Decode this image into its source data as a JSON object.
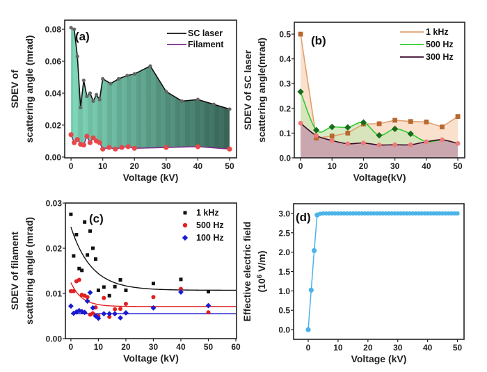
{
  "chart_data": [
    {
      "panel": "(a)",
      "type": "area",
      "xlabel": "Voltage (kV)",
      "ylabel": [
        "SDEV of",
        "scattering angle (mrad)"
      ],
      "xlim": [
        -2,
        52.2
      ],
      "ylim": [
        -0.0005,
        0.0857
      ],
      "xticks": [
        0,
        10,
        20,
        30,
        40,
        50
      ],
      "xtick_labels": [
        "0",
        "10",
        "20",
        "30",
        "40",
        "50"
      ],
      "yticks": [
        0,
        0.02,
        0.04,
        0.06,
        0.08
      ],
      "ytick_labels": [
        "0.00",
        "0.02",
        "0.04",
        "0.06",
        "0.08"
      ],
      "legend": "top-right",
      "series": [
        {
          "name": "SC laser",
          "color": "#111111",
          "marker_color": "#666666",
          "x": [
            0,
            1,
            2,
            3,
            4,
            5,
            6,
            7,
            8,
            9,
            10,
            12.5,
            15,
            17.7,
            20,
            25,
            30,
            35,
            40,
            45,
            50
          ],
          "y": [
            0.081,
            0.08,
            0.063,
            0.031,
            0.048,
            0.038,
            0.04,
            0.035,
            0.039,
            0.036,
            0.049,
            0.046,
            0.049,
            0.051,
            0.052,
            0.057,
            0.041,
            0.035,
            0.036,
            0.033,
            0.03
          ]
        },
        {
          "name": "Filament",
          "color": "#7a2a8a",
          "marker_color": "#e8474a",
          "x": [
            0,
            1,
            2,
            3,
            4,
            5,
            6,
            7,
            8,
            9,
            10,
            12,
            14,
            16,
            18,
            20,
            30,
            40,
            50
          ],
          "y": [
            0.014,
            0.009,
            0.011,
            0.008,
            0.0075,
            0.013,
            0.009,
            0.012,
            0.01,
            0.009,
            0.005,
            0.006,
            0.005,
            0.006,
            0.0065,
            0.0055,
            0.006,
            0.0065,
            0.005
          ]
        }
      ],
      "fill_color": "#6fc9ad"
    },
    {
      "panel": "(b)",
      "type": "area",
      "xlabel": "Voltage(kV)",
      "ylabel": [
        "SDEV of SC laser",
        "scattering angle(mrad)"
      ],
      "xlim": [
        -2,
        52.2
      ],
      "ylim": [
        0,
        0.548
      ],
      "xticks": [
        0,
        10,
        20,
        30,
        40,
        50
      ],
      "xtick_labels": [
        "0",
        "10",
        "20",
        "30",
        "40",
        "50"
      ],
      "yticks": [
        0,
        0.1,
        0.2,
        0.3,
        0.4,
        0.5
      ],
      "ytick_labels": [
        "0.0",
        "0.1",
        "0.2",
        "0.3",
        "0.4",
        "0.5"
      ],
      "legend": "top-right",
      "series": [
        {
          "name": "1 kHz",
          "color": "#e0a070",
          "marker_color": "#b8672e",
          "fill": "#f7d9c0",
          "marker": "square",
          "smooth": false,
          "x": [
            0,
            5,
            10,
            15,
            20,
            25,
            30,
            35,
            40,
            45,
            50
          ],
          "y": [
            0.5,
            0.08,
            0.088,
            0.1,
            0.137,
            0.138,
            0.152,
            0.147,
            0.145,
            0.125,
            0.167
          ]
        },
        {
          "name": "500 Hz",
          "color": "#2ecc2e",
          "marker_color": "#1a6b1a",
          "fill": "#cfe6b8",
          "marker": "diamond",
          "smooth": true,
          "x": [
            0,
            5,
            10,
            15,
            20,
            25,
            30,
            35,
            40,
            45,
            50
          ],
          "y": [
            0.267,
            0.112,
            0.125,
            0.123,
            0.143,
            0.091,
            0.117,
            0.097,
            0.065,
            0.072,
            0.058
          ]
        },
        {
          "name": "300 Hz",
          "color": "#3a0a2a",
          "marker_color": "#f07a7a",
          "fill": "#c9a3ad",
          "marker": "circle",
          "smooth": true,
          "x": [
            0,
            5,
            10,
            15,
            20,
            25,
            30,
            35,
            40,
            45,
            50
          ],
          "y": [
            0.14,
            0.09,
            0.07,
            0.057,
            0.06,
            0.052,
            0.053,
            0.053,
            0.065,
            0.073,
            0.058
          ]
        }
      ]
    },
    {
      "panel": "(c)",
      "type": "scatter",
      "xlabel": "Voltage (kV)",
      "ylabel": [
        "SDEV of filament",
        "scattering angle (mrad)"
      ],
      "xlim": [
        -2,
        60.25
      ],
      "ylim": [
        0,
        0.03
      ],
      "xticks": [
        0,
        10,
        20,
        30,
        40,
        50,
        60
      ],
      "xtick_labels": [
        "0",
        "10",
        "20",
        "30",
        "40",
        "50",
        "60"
      ],
      "yticks": [
        0,
        0.01,
        0.02,
        0.03
      ],
      "ytick_labels": [
        "0.00",
        "0.01",
        "0.02",
        "0.03"
      ],
      "legend": "top-right",
      "series": [
        {
          "name": "1 kHz",
          "color": "#111111",
          "marker": "square",
          "x": [
            0,
            1,
            2,
            3,
            4,
            5,
            6,
            7,
            8,
            9,
            10,
            12,
            14,
            16,
            18,
            20,
            30,
            40,
            50
          ],
          "y": [
            0.0275,
            0.0183,
            0.023,
            0.0155,
            0.0151,
            0.0258,
            0.0185,
            0.0238,
            0.02,
            0.0176,
            0.0107,
            0.0114,
            0.0095,
            0.0115,
            0.013,
            0.0107,
            0.0122,
            0.0131,
            0.0104
          ],
          "fit": {
            "y0": 0.0107,
            "A": 0.014,
            "t": 7.5
          }
        },
        {
          "name": "500 Hz",
          "color": "#e02020",
          "marker": "circle",
          "x": [
            0,
            1,
            2,
            3,
            4,
            5,
            6,
            7,
            8,
            9,
            10,
            12,
            14,
            16,
            18,
            20,
            30,
            40,
            50
          ],
          "y": [
            0.0105,
            0.0105,
            0.0127,
            0.013,
            0.0097,
            0.0095,
            0.0092,
            0.0053,
            0.0056,
            0.0069,
            0.005,
            0.009,
            0.0048,
            0.0065,
            0.0066,
            0.0077,
            0.0092,
            0.011,
            0.0058
          ],
          "fit": {
            "y0": 0.0071,
            "A": 0.0053,
            "t": 4
          }
        },
        {
          "name": "100 Hz",
          "color": "#1a1ad0",
          "marker": "diamond",
          "x": [
            0,
            1,
            2,
            3,
            4,
            5,
            6,
            7,
            8,
            9,
            10,
            12,
            14,
            16,
            18,
            20,
            30,
            40,
            50
          ],
          "y": [
            0.0072,
            0.0056,
            0.0059,
            0.0062,
            0.006,
            0.0058,
            0.0083,
            0.0102,
            0.0068,
            0.005,
            0.0045,
            0.0055,
            0.0055,
            0.0055,
            0.0046,
            0.0057,
            0.0068,
            0.0103,
            0.0073
          ],
          "fit": {
            "y0": 0.0055,
            "A": 0,
            "t": 1
          }
        }
      ]
    },
    {
      "panel": "(d)",
      "type": "line",
      "xlabel": "Voltage (kV)",
      "ylabel": [
        "Effective electric field",
        "(10",
        "6",
        " V/m)"
      ],
      "xlim": [
        -4.9,
        52.2
      ],
      "ylim": [
        -0.25,
        3.25
      ],
      "xticks": [
        0,
        10,
        20,
        30,
        40,
        50
      ],
      "xtick_labels": [
        "0",
        "10",
        "20",
        "30",
        "40",
        "50"
      ],
      "yticks": [
        0,
        0.5,
        1,
        1.5,
        2,
        2.5,
        3
      ],
      "ytick_labels": [
        "0.0",
        "0.5",
        "1.0",
        "1.5",
        "2.0",
        "2.5",
        "3.0"
      ],
      "series": [
        {
          "color": "#4ab3e8",
          "x": [
            0,
            1,
            2,
            3,
            4,
            5,
            6,
            7,
            8,
            9,
            10,
            11,
            12,
            13,
            14,
            15,
            16,
            17,
            18,
            19,
            20,
            21,
            22,
            23,
            24,
            25,
            26,
            27,
            28,
            29,
            30,
            31,
            32,
            33,
            34,
            35,
            36,
            37,
            38,
            39,
            40,
            41,
            42,
            43,
            44,
            45,
            46,
            47,
            48,
            49,
            50
          ],
          "y": [
            0,
            1.02,
            2.04,
            2.96,
            2.99,
            3,
            3,
            3,
            3,
            3,
            3,
            3,
            3,
            3,
            3,
            3,
            3,
            3,
            3,
            3,
            3,
            3,
            3,
            3,
            3,
            3,
            3,
            3,
            3,
            3,
            3,
            3,
            3,
            3,
            3,
            3,
            3,
            3,
            3,
            3,
            3,
            3,
            3,
            3,
            3,
            3,
            3,
            3,
            3,
            3,
            3
          ]
        }
      ]
    }
  ]
}
